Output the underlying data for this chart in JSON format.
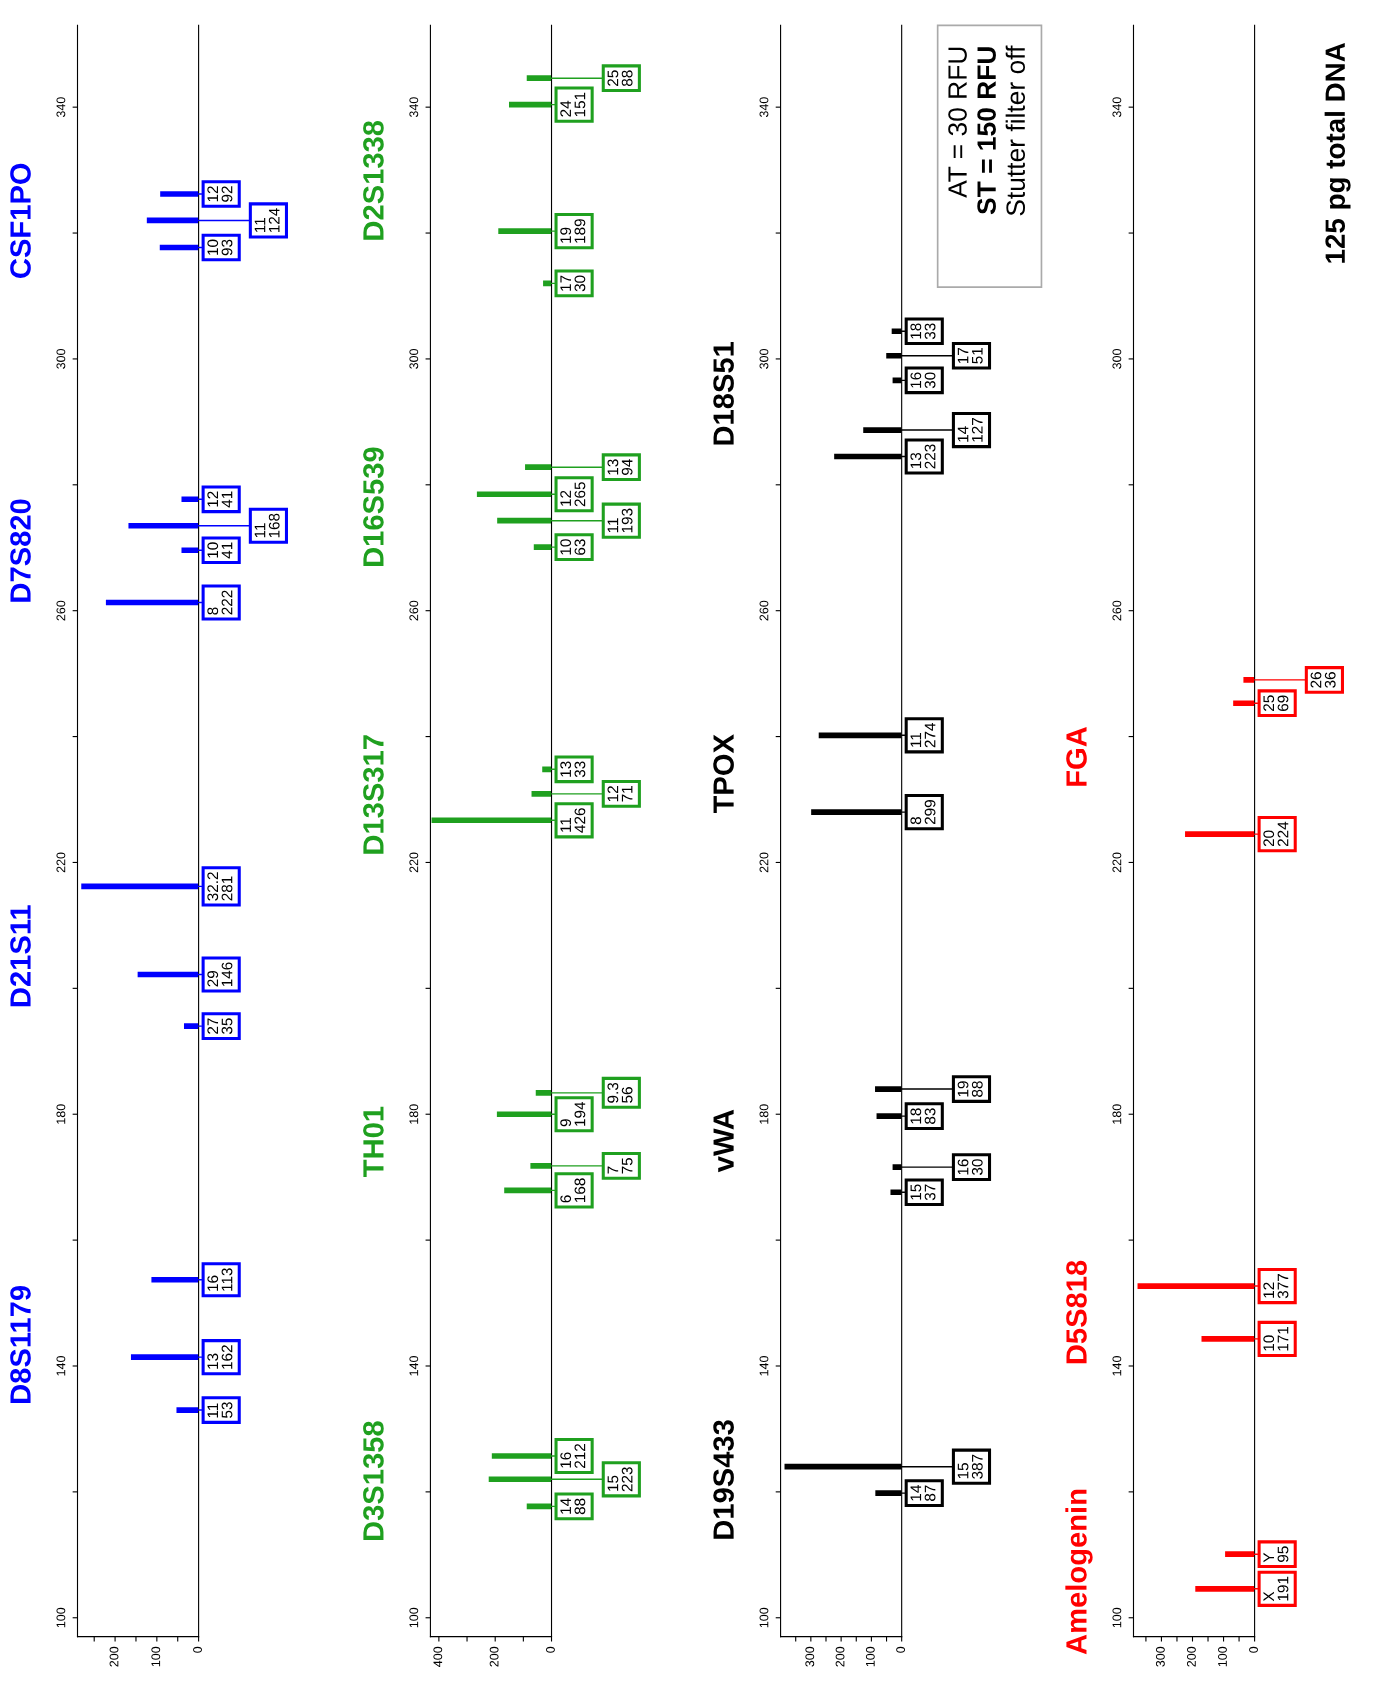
{
  "chart_data": [
    {
      "type": "bar",
      "orientation": "horizontal",
      "x": [
        133,
        141.4,
        153.7,
        194,
        202.2,
        216.2,
        261.3,
        269.6,
        273.5,
        277.7,
        317.7,
        322,
        326.2
      ],
      "series": [
        {
          "color": "#0000ff",
          "values": [
            53,
            162,
            113,
            35,
            146,
            281,
            222,
            41,
            168,
            41,
            93,
            124,
            92
          ]
        }
      ],
      "value_labels": [
        "11\n53",
        "13\n162",
        "16\n113",
        "27\n35",
        "29\n146",
        "32.2\n281",
        "8\n222",
        "10\n41",
        "11\n168",
        "12\n41",
        "10\n93",
        "11\n124",
        "12\n92"
      ],
      "xlim": [
        290,
        0
      ],
      "xticks": [
        {
          "value": 250,
          "label": null
        },
        200,
        {
          "value": 150,
          "label": null
        },
        100,
        {
          "value": 50,
          "label": null
        },
        0
      ],
      "ylim": [
        97,
        353
      ],
      "yticks": [
        100,
        {
          "value": 120,
          "label": null
        },
        140,
        {
          "value": 160,
          "label": null
        },
        180,
        {
          "value": 200,
          "label": null
        },
        220,
        {
          "value": 240,
          "label": null
        },
        260,
        {
          "value": 280,
          "label": null
        },
        300,
        {
          "value": 320,
          "label": null
        },
        340
      ],
      "annotations": [
        "D8S1179",
        "D21S11",
        "D7S820",
        "CSF1PO"
      ]
    },
    {
      "type": "bar",
      "orientation": "horizontal",
      "x": [
        117.7,
        122,
        125.7,
        167.9,
        171.8,
        180,
        183.4,
        226.7,
        230.9,
        234.8,
        270.1,
        274.3,
        278.5,
        282.8,
        312,
        320.3,
        340.4,
        344.6
      ],
      "series": [
        {
          "color": "#1fa01f",
          "values": [
            88,
            223,
            212,
            168,
            75,
            194,
            56,
            426,
            71,
            33,
            63,
            193,
            265,
            94,
            30,
            189,
            151,
            88
          ]
        }
      ],
      "value_labels": [
        "14\n88",
        "15\n223",
        "16\n212",
        "6\n168",
        "7\n75",
        "9\n194",
        "9.3\n56",
        "11\n426",
        "12\n71",
        "13\n33",
        "10\n63",
        "11\n193",
        "12\n265",
        "13\n94",
        "17\n30",
        "19\n189",
        "24\n151",
        "25\n88"
      ],
      "xlim": [
        430,
        0
      ],
      "xticks": [
        400,
        {
          "value": 300,
          "label": null
        },
        200,
        {
          "value": 100,
          "label": null
        },
        0
      ],
      "ylim": [
        97,
        353
      ],
      "yticks": [
        100,
        {
          "value": 120,
          "label": null
        },
        140,
        {
          "value": 160,
          "label": null
        },
        180,
        {
          "value": 200,
          "label": null
        },
        220,
        {
          "value": 240,
          "label": null
        },
        260,
        {
          "value": 280,
          "label": null
        },
        300,
        {
          "value": 320,
          "label": null
        },
        340
      ],
      "annotations": [
        "D3S1358",
        "TH01",
        "D13S317",
        "D16S539",
        "D2S1338"
      ]
    },
    {
      "type": "bar",
      "orientation": "horizontal",
      "x": [
        119.8,
        124,
        167.6,
        171.6,
        179.7,
        184,
        228,
        240.2,
        284.5,
        288.7,
        296.6,
        300.5,
        304.4
      ],
      "series": [
        {
          "color": "#000000",
          "values": [
            87,
            387,
            37,
            30,
            83,
            88,
            299,
            274,
            223,
            127,
            30,
            51,
            33
          ]
        }
      ],
      "value_labels": [
        "14\n87",
        "15\n387",
        "15\n37",
        "16\n30",
        "18\n83",
        "19\n88",
        "8\n299",
        "11\n274",
        "13\n223",
        "14\n127",
        "16\n30",
        "17\n51",
        "18\n33"
      ],
      "xlim": [
        400,
        0
      ],
      "xticks": [
        {
          "value": 350,
          "label": null
        },
        300,
        {
          "value": 250,
          "label": null
        },
        200,
        {
          "value": 150,
          "label": null
        },
        100,
        {
          "value": 50,
          "label": null
        },
        0
      ],
      "ylim": [
        97,
        353
      ],
      "yticks": [
        100,
        {
          "value": 120,
          "label": null
        },
        140,
        {
          "value": 160,
          "label": null
        },
        180,
        {
          "value": 200,
          "label": null
        },
        220,
        {
          "value": 240,
          "label": null
        },
        260,
        {
          "value": 280,
          "label": null
        },
        300,
        {
          "value": 320,
          "label": null
        },
        340
      ],
      "annotations": [
        "D19S433",
        "vWA",
        "TPOX",
        "D18S51",
        "AT = 30 RFU",
        "ST = 150 RFU",
        "Stutter filter off"
      ]
    },
    {
      "type": "bar",
      "orientation": "horizontal",
      "x": [
        104.6,
        110.1,
        144.3,
        152.7,
        224.5,
        245.3,
        249
      ],
      "series": [
        {
          "color": "#ff0000",
          "values": [
            191,
            95,
            171,
            377,
            224,
            69,
            36
          ]
        }
      ],
      "value_labels": [
        "X\n191",
        "Y\n95",
        "10\n171",
        "12\n377",
        "20\n224",
        "25\n69",
        "26\n36"
      ],
      "xlim": [
        390,
        0
      ],
      "xticks": [
        {
          "value": 350,
          "label": null
        },
        300,
        {
          "value": 250,
          "label": null
        },
        200,
        {
          "value": 150,
          "label": null
        },
        100,
        {
          "value": 50,
          "label": null
        },
        0
      ],
      "ylim": [
        97,
        353
      ],
      "yticks": [
        100,
        {
          "value": 120,
          "label": null
        },
        140,
        {
          "value": 160,
          "label": null
        },
        180,
        {
          "value": 200,
          "label": null
        },
        220,
        {
          "value": 240,
          "label": null
        },
        260,
        {
          "value": 280,
          "label": null
        },
        300,
        {
          "value": 320,
          "label": null
        },
        340
      ],
      "annotations": [
        "Amelogenin",
        "D5S818",
        "FGA",
        "125 pg total DNA"
      ]
    }
  ]
}
